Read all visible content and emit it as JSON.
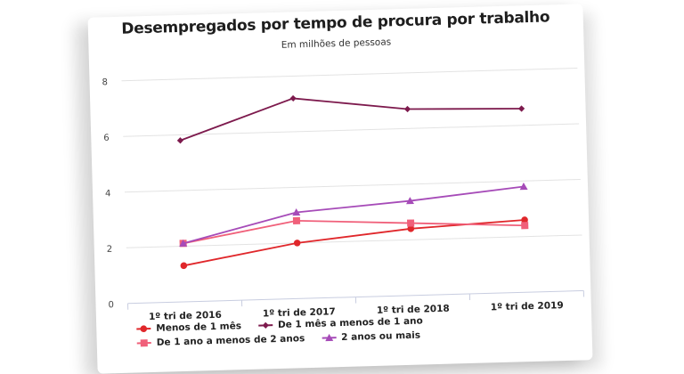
{
  "chart_data": {
    "type": "line",
    "title": "Desempregados por tempo de procura por trabalho",
    "subtitle": "Em milhões de pessoas",
    "xlabel": "",
    "ylabel": "",
    "categories": [
      "1º tri de 2016",
      "1º tri de 2017",
      "1º tri de 2018",
      "1º tri de 2019"
    ],
    "ylim": [
      0,
      8
    ],
    "yticks": [
      "0",
      "2",
      "4",
      "6",
      "8"
    ],
    "grid": true,
    "legend_position": "bottom-left",
    "series": [
      {
        "name": "Menos de 1 mês",
        "marker": "circle",
        "color": "#e0272b",
        "values": [
          1.3,
          2.0,
          2.4,
          2.6
        ]
      },
      {
        "name": "De 1 mês a menos de 1 ano",
        "marker": "diamond",
        "color": "#7d1a4d",
        "values": [
          5.8,
          7.2,
          6.7,
          6.6
        ]
      },
      {
        "name": "De 1 ano a menos de 2 anos",
        "marker": "square",
        "color": "#f0607a",
        "values": [
          2.1,
          2.8,
          2.6,
          2.4
        ]
      },
      {
        "name": "2 anos ou mais",
        "marker": "triangle",
        "color": "#a64bb8",
        "values": [
          2.1,
          3.1,
          3.4,
          3.8
        ]
      }
    ]
  }
}
